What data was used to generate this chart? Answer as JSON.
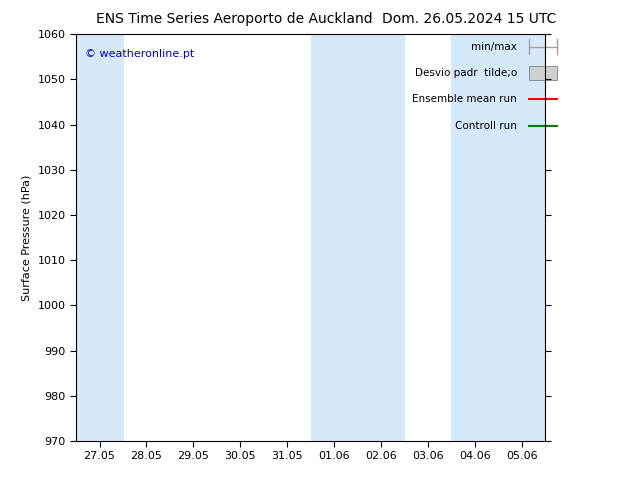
{
  "title_left": "ENS Time Series Aeroporto de Auckland",
  "title_right": "Dom. 26.05.2024 15 UTC",
  "ylabel": "Surface Pressure (hPa)",
  "ylim": [
    970,
    1060
  ],
  "yticks": [
    970,
    980,
    990,
    1000,
    1010,
    1020,
    1030,
    1040,
    1050,
    1060
  ],
  "x_labels": [
    "27.05",
    "28.05",
    "29.05",
    "30.05",
    "31.05",
    "01.06",
    "02.06",
    "03.06",
    "04.06",
    "05.06"
  ],
  "x_positions": [
    0,
    1,
    2,
    3,
    4,
    5,
    6,
    7,
    8,
    9
  ],
  "shaded_columns": [
    0,
    5,
    6,
    8,
    9
  ],
  "shaded_color": "#d6e9f8",
  "background_color": "#ffffff",
  "plot_bg_color": "#ffffff",
  "legend_items": [
    {
      "label": "min/max",
      "color": "#a0a0a0",
      "style": "line_with_ticks"
    },
    {
      "label": "Desvio padr  tilde;o",
      "color": "#d0d0d0",
      "style": "box"
    },
    {
      "label": "Ensemble mean run",
      "color": "#ff0000",
      "style": "line"
    },
    {
      "label": "Controll run",
      "color": "#008000",
      "style": "line"
    }
  ],
  "watermark": "© weatheronline.pt",
  "watermark_color": "#0000cc",
  "tick_color": "#000000",
  "spine_color": "#000000",
  "title_fontsize": 10,
  "axis_fontsize": 8,
  "tick_fontsize": 8,
  "legend_fontsize": 7.5
}
